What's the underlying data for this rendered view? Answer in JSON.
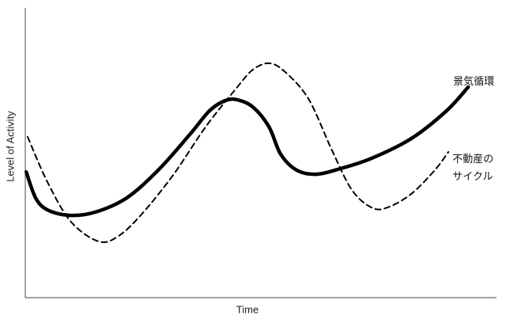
{
  "chart_data": {
    "type": "line",
    "xlabel": "Time",
    "ylabel": "Level of Activity",
    "xlim": [
      0,
      100
    ],
    "ylim": [
      0,
      100
    ],
    "series": [
      {
        "name": "景気循環",
        "color": "#000000",
        "style": "solid",
        "x": [
          0.2,
          2.2,
          4.7,
          9.4,
          14.8,
          21.5,
          28.2,
          34.9,
          39.1,
          42.4,
          45.0,
          48.3,
          51.7,
          54.2,
          57.6,
          61.7,
          66.8,
          73.5,
          81.9,
          89.4,
          94.0
        ],
        "values": [
          43.4,
          34.4,
          30.3,
          28.4,
          29.5,
          34.4,
          44.0,
          56.3,
          64.5,
          68.0,
          68.3,
          65.8,
          59.0,
          49.5,
          44.0,
          42.6,
          44.5,
          48.1,
          54.9,
          64.5,
          72.7
        ]
      },
      {
        "name": "不動産の\nサイクル",
        "color": "#000000",
        "style": "dashed",
        "x": [
          0.5,
          4.7,
          9.7,
          15.6,
          19.8,
          24.8,
          31.5,
          38.3,
          45.0,
          48.3,
          51.7,
          55.0,
          60.1,
          65.1,
          69.3,
          73.5,
          76.8,
          81.9,
          86.9,
          89.8
        ],
        "values": [
          55.5,
          39.9,
          26.2,
          19.4,
          21.3,
          29.0,
          42.6,
          59.0,
          72.7,
          78.7,
          80.9,
          78.1,
          68.6,
          50.8,
          37.2,
          31.1,
          31.1,
          35.8,
          44.0,
          50.3
        ]
      }
    ]
  }
}
